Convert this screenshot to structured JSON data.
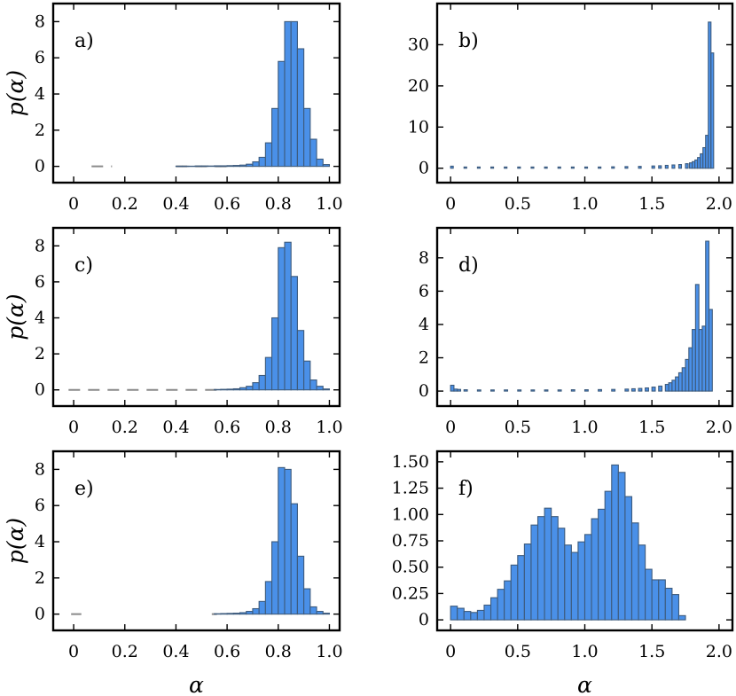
{
  "colors": {
    "bar_fill": "#4a90e8",
    "bar_edge": "#3d5b7d",
    "dash": "#8a8a8a",
    "axis": "#000000"
  },
  "chart_data": [
    {
      "panel": "a)",
      "type": "bar",
      "ylabel": "p(α)",
      "xlabel": "",
      "xlim": [
        -0.08,
        1.04
      ],
      "ylim": [
        -0.9,
        9.0
      ],
      "xticks": [
        0,
        0.2,
        0.4,
        0.6,
        0.8,
        1.0
      ],
      "xtick_labels": [
        "0",
        "0.2",
        "0.4",
        "0.6",
        "0.8",
        "1.0"
      ],
      "yticks": [
        0,
        2,
        4,
        6,
        8
      ],
      "ytick_labels": [
        "0",
        "2",
        "4",
        "6",
        "8"
      ],
      "bin_width": 0.025,
      "bin_starts": [
        0.4,
        0.425,
        0.45,
        0.475,
        0.5,
        0.525,
        0.55,
        0.575,
        0.6,
        0.625,
        0.65,
        0.675,
        0.7,
        0.725,
        0.75,
        0.775,
        0.8,
        0.825,
        0.85,
        0.875,
        0.9,
        0.925,
        0.95,
        0.975
      ],
      "values": [
        0.01,
        0.01,
        0.01,
        0.02,
        0.02,
        0.02,
        0.03,
        0.03,
        0.04,
        0.05,
        0.07,
        0.12,
        0.25,
        0.5,
        1.3,
        3.2,
        5.8,
        8.0,
        8.0,
        6.5,
        3.2,
        1.5,
        0.4,
        0.1
      ],
      "dashes": [
        [
          0.07,
          0.15
        ],
        [
          0.4,
          0.6
        ]
      ]
    },
    {
      "panel": "b)",
      "type": "bar",
      "ylabel": "",
      "xlabel": "",
      "xlim": [
        -0.1,
        2.1
      ],
      "ylim": [
        -3.5,
        40
      ],
      "xticks": [
        0,
        0.5,
        1.0,
        1.5,
        2.0
      ],
      "xtick_labels": [
        "0",
        "0.5",
        "1.0",
        "1.5",
        "2.0"
      ],
      "yticks": [
        0,
        10,
        20,
        30
      ],
      "ytick_labels": [
        "0",
        "10",
        "20",
        "30"
      ],
      "bin_width": 0.02,
      "bin_starts": [
        0.0,
        0.1,
        0.2,
        0.3,
        0.4,
        0.5,
        0.6,
        0.7,
        0.8,
        0.9,
        1.0,
        1.1,
        1.2,
        1.3,
        1.4,
        1.5,
        1.55,
        1.6,
        1.65,
        1.7,
        1.75,
        1.78,
        1.8,
        1.82,
        1.84,
        1.86,
        1.88,
        1.9,
        1.92,
        1.94
      ],
      "values": [
        0.5,
        0.3,
        0.3,
        0.3,
        0.3,
        0.3,
        0.3,
        0.3,
        0.3,
        0.3,
        0.3,
        0.3,
        0.35,
        0.4,
        0.45,
        0.55,
        0.6,
        0.7,
        0.8,
        0.9,
        1.1,
        1.3,
        1.6,
        2.0,
        2.6,
        3.5,
        5.0,
        8.0,
        35.5,
        28.0
      ],
      "dashes": []
    },
    {
      "panel": "c)",
      "type": "bar",
      "ylabel": "p(α)",
      "xlabel": "",
      "xlim": [
        -0.08,
        1.04
      ],
      "ylim": [
        -0.9,
        9.0
      ],
      "xticks": [
        0,
        0.2,
        0.4,
        0.6,
        0.8,
        1.0
      ],
      "xtick_labels": [
        "0",
        "0.2",
        "0.4",
        "0.6",
        "0.8",
        "1.0"
      ],
      "yticks": [
        0,
        2,
        4,
        6,
        8
      ],
      "ytick_labels": [
        "0",
        "2",
        "4",
        "6",
        "8"
      ],
      "bin_width": 0.025,
      "bin_starts": [
        0.55,
        0.575,
        0.6,
        0.625,
        0.65,
        0.675,
        0.7,
        0.725,
        0.75,
        0.775,
        0.8,
        0.825,
        0.85,
        0.875,
        0.9,
        0.925,
        0.95,
        0.975
      ],
      "values": [
        0.02,
        0.03,
        0.04,
        0.06,
        0.12,
        0.2,
        0.4,
        0.8,
        1.8,
        4.0,
        7.9,
        8.2,
        6.3,
        3.3,
        1.6,
        0.55,
        0.2,
        0.05
      ],
      "dashes": [
        [
          -0.02,
          0.56
        ]
      ]
    },
    {
      "panel": "d)",
      "type": "bar",
      "ylabel": "",
      "xlabel": "",
      "xlim": [
        -0.1,
        2.1
      ],
      "ylim": [
        -0.9,
        9.8
      ],
      "xticks": [
        0,
        0.5,
        1.0,
        1.5,
        2.0
      ],
      "xtick_labels": [
        "0",
        "0.5",
        "1.0",
        "1.5",
        "2.0"
      ],
      "yticks": [
        0,
        2,
        4,
        6,
        8
      ],
      "ytick_labels": [
        "0",
        "2",
        "4",
        "6",
        "8"
      ],
      "bin_width": 0.025,
      "bin_starts": [
        0.0,
        0.025,
        0.05,
        0.1,
        0.2,
        0.3,
        0.4,
        0.5,
        0.6,
        0.7,
        0.8,
        0.9,
        1.0,
        1.1,
        1.2,
        1.3,
        1.35,
        1.4,
        1.45,
        1.5,
        1.55,
        1.6,
        1.625,
        1.65,
        1.675,
        1.7,
        1.725,
        1.75,
        1.775,
        1.8,
        1.825,
        1.85,
        1.875,
        1.9,
        1.925
      ],
      "values": [
        0.35,
        0.12,
        0.1,
        0.08,
        0.07,
        0.07,
        0.07,
        0.07,
        0.07,
        0.07,
        0.07,
        0.08,
        0.08,
        0.09,
        0.1,
        0.12,
        0.14,
        0.16,
        0.19,
        0.24,
        0.3,
        0.4,
        0.5,
        0.65,
        0.85,
        1.1,
        1.4,
        1.9,
        2.6,
        3.7,
        6.4,
        3.7,
        3.9,
        9.0,
        4.9
      ],
      "dashes": []
    },
    {
      "panel": "e)",
      "type": "bar",
      "ylabel": "p(α)",
      "xlabel": "α",
      "xlim": [
        -0.08,
        1.04
      ],
      "ylim": [
        -0.9,
        9.0
      ],
      "xticks": [
        0,
        0.2,
        0.4,
        0.6,
        0.8,
        1.0
      ],
      "xtick_labels": [
        "0",
        "0.2",
        "0.4",
        "0.6",
        "0.8",
        "1.0"
      ],
      "yticks": [
        0,
        2,
        4,
        6,
        8
      ],
      "ytick_labels": [
        "0",
        "2",
        "4",
        "6",
        "8"
      ],
      "bin_width": 0.025,
      "bin_starts": [
        0.55,
        0.575,
        0.6,
        0.625,
        0.65,
        0.675,
        0.7,
        0.725,
        0.75,
        0.775,
        0.8,
        0.825,
        0.85,
        0.875,
        0.9,
        0.925,
        0.95,
        0.975
      ],
      "values": [
        0.02,
        0.03,
        0.04,
        0.05,
        0.08,
        0.15,
        0.3,
        0.7,
        1.8,
        4.0,
        8.1,
        8.0,
        6.1,
        3.2,
        1.4,
        0.4,
        0.15,
        0.05
      ],
      "dashes": [
        [
          -0.01,
          0.03
        ],
        [
          0.54,
          0.56
        ]
      ]
    },
    {
      "panel": "f)",
      "type": "bar",
      "ylabel": "",
      "xlabel": "α",
      "xlim": [
        -0.1,
        2.1
      ],
      "ylim": [
        -0.1,
        1.6
      ],
      "xticks": [
        0,
        0.5,
        1.0,
        1.5,
        2.0
      ],
      "xtick_labels": [
        "0",
        "0.5",
        "1.0",
        "1.5",
        "2.0"
      ],
      "yticks": [
        0,
        0.25,
        0.5,
        0.75,
        1.0,
        1.25,
        1.5
      ],
      "ytick_labels": [
        "0",
        "0.25",
        "0.50",
        "0.75",
        "1.00",
        "1.25",
        "1.50"
      ],
      "bin_width": 0.05,
      "bin_starts": [
        0.0,
        0.05,
        0.1,
        0.15,
        0.2,
        0.25,
        0.3,
        0.35,
        0.4,
        0.45,
        0.5,
        0.55,
        0.6,
        0.65,
        0.7,
        0.75,
        0.8,
        0.85,
        0.9,
        0.95,
        1.0,
        1.05,
        1.1,
        1.15,
        1.2,
        1.25,
        1.3,
        1.35,
        1.4,
        1.45,
        1.5,
        1.55,
        1.6,
        1.65,
        1.7
      ],
      "values": [
        0.13,
        0.11,
        0.08,
        0.07,
        0.09,
        0.14,
        0.21,
        0.29,
        0.37,
        0.52,
        0.61,
        0.72,
        0.9,
        0.98,
        1.06,
        0.98,
        0.87,
        0.71,
        0.64,
        0.74,
        0.81,
        0.96,
        1.05,
        1.22,
        1.47,
        1.4,
        1.17,
        0.92,
        0.71,
        0.48,
        0.38,
        0.38,
        0.3,
        0.24,
        0.04
      ],
      "dashes": []
    }
  ]
}
